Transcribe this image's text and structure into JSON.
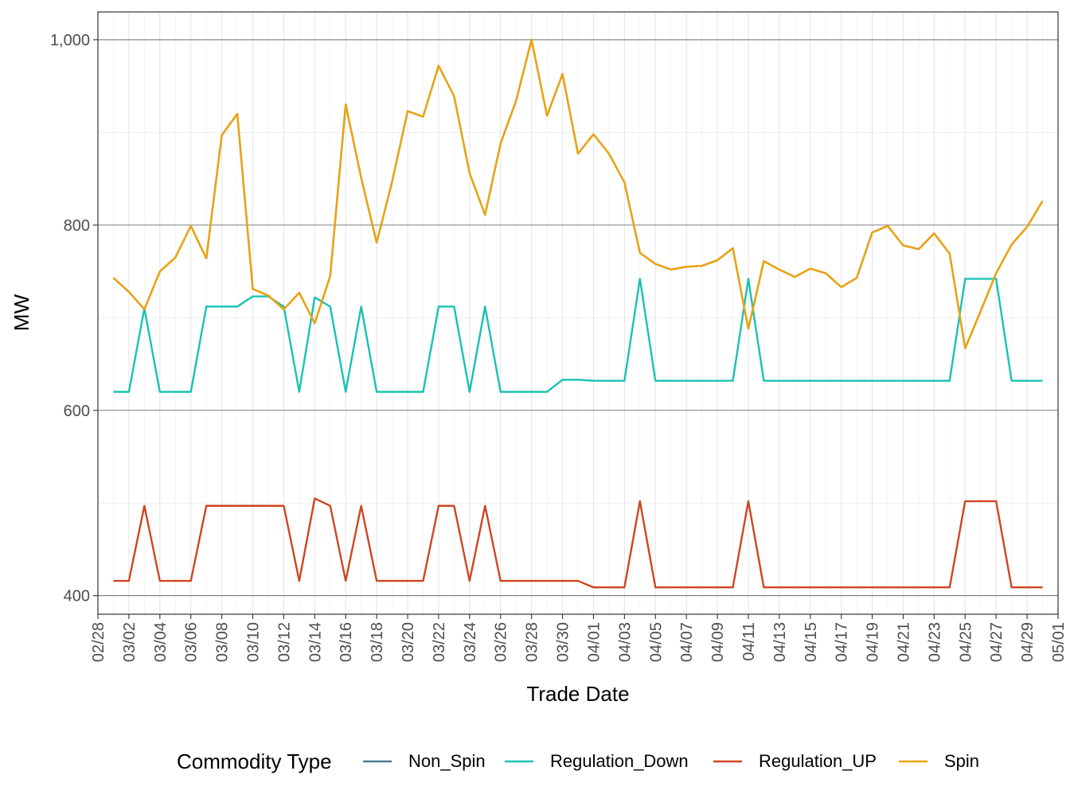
{
  "chart_data": {
    "type": "line",
    "xlabel": "Trade Date",
    "ylabel": "MW",
    "legend_title": "Commodity Type",
    "legend_position": "bottom",
    "grid": true,
    "x_start": "2023-02-28",
    "x_end": "2023-05-01",
    "ylim": [
      380,
      1030
    ],
    "y_ticks": [
      400,
      600,
      800,
      1000
    ],
    "y_tick_labels": [
      "400",
      "600",
      "800",
      "1,000"
    ],
    "x_tick_labels": [
      "02/28",
      "03/02",
      "03/04",
      "03/06",
      "03/08",
      "03/10",
      "03/12",
      "03/14",
      "03/16",
      "03/18",
      "03/20",
      "03/22",
      "03/24",
      "03/26",
      "03/28",
      "03/30",
      "04/01",
      "04/03",
      "04/05",
      "04/07",
      "04/09",
      "04/11",
      "04/13",
      "04/15",
      "04/17",
      "04/19",
      "04/21",
      "04/23",
      "04/25",
      "04/27",
      "04/29",
      "05/01"
    ],
    "x": [
      "03/01",
      "03/02",
      "03/03",
      "03/04",
      "03/05",
      "03/06",
      "03/07",
      "03/08",
      "03/09",
      "03/10",
      "03/11",
      "03/12",
      "03/13",
      "03/14",
      "03/15",
      "03/16",
      "03/17",
      "03/18",
      "03/19",
      "03/20",
      "03/21",
      "03/22",
      "03/23",
      "03/24",
      "03/25",
      "03/26",
      "03/27",
      "03/28",
      "03/29",
      "03/30",
      "03/31",
      "04/01",
      "04/02",
      "04/03",
      "04/04",
      "04/05",
      "04/06",
      "04/07",
      "04/08",
      "04/09",
      "04/10",
      "04/11",
      "04/12",
      "04/13",
      "04/14",
      "04/15",
      "04/16",
      "04/17",
      "04/18",
      "04/19",
      "04/20",
      "04/21",
      "04/22",
      "04/23",
      "04/24",
      "04/25",
      "04/26",
      "04/27",
      "04/28",
      "04/29",
      "04/30"
    ],
    "series": [
      {
        "name": "Non_Spin",
        "color": "#4e7a8f",
        "values": [
          743,
          728,
          709,
          750,
          765,
          799,
          764,
          897,
          920,
          731,
          724,
          709,
          727,
          694,
          745,
          930,
          851,
          781,
          847,
          923,
          917,
          972,
          939,
          856,
          811,
          888,
          934,
          1000,
          918,
          963,
          877,
          898,
          877,
          846,
          770,
          758,
          752,
          755,
          756,
          762,
          775,
          688,
          761,
          752,
          744,
          753,
          748,
          733,
          743,
          792,
          799,
          778,
          774,
          791,
          769,
          667,
          707,
          748,
          779,
          798,
          826
        ]
      },
      {
        "name": "Regulation_Down",
        "color": "#17c3b2",
        "values": [
          620,
          620,
          710,
          620,
          620,
          620,
          712,
          712,
          712,
          723,
          723,
          712,
          620,
          722,
          712,
          620,
          712,
          620,
          620,
          620,
          620,
          712,
          712,
          620,
          712,
          620,
          620,
          620,
          620,
          633,
          633,
          632,
          632,
          632,
          742,
          632,
          632,
          632,
          632,
          632,
          632,
          742,
          632,
          632,
          632,
          632,
          632,
          632,
          632,
          632,
          632,
          632,
          632,
          632,
          632,
          742,
          742,
          742,
          632,
          632,
          632
        ]
      },
      {
        "name": "Regulation_UP",
        "color": "#cf4520",
        "values": [
          416,
          416,
          497,
          416,
          416,
          416,
          497,
          497,
          497,
          497,
          497,
          497,
          416,
          505,
          497,
          416,
          497,
          416,
          416,
          416,
          416,
          497,
          497,
          416,
          497,
          416,
          416,
          416,
          416,
          416,
          416,
          409,
          409,
          409,
          502,
          409,
          409,
          409,
          409,
          409,
          409,
          502,
          409,
          409,
          409,
          409,
          409,
          409,
          409,
          409,
          409,
          409,
          409,
          409,
          409,
          502,
          502,
          502,
          409,
          409,
          409
        ]
      },
      {
        "name": "Spin",
        "color": "#f0a30a",
        "values": [
          743,
          728,
          709,
          750,
          765,
          799,
          764,
          897,
          920,
          731,
          724,
          709,
          727,
          694,
          745,
          930,
          851,
          781,
          847,
          923,
          917,
          972,
          939,
          856,
          811,
          888,
          934,
          1000,
          918,
          963,
          877,
          898,
          877,
          846,
          770,
          758,
          752,
          755,
          756,
          762,
          775,
          688,
          761,
          752,
          744,
          753,
          748,
          733,
          743,
          792,
          799,
          778,
          774,
          791,
          769,
          667,
          707,
          748,
          779,
          798,
          826
        ]
      }
    ]
  }
}
